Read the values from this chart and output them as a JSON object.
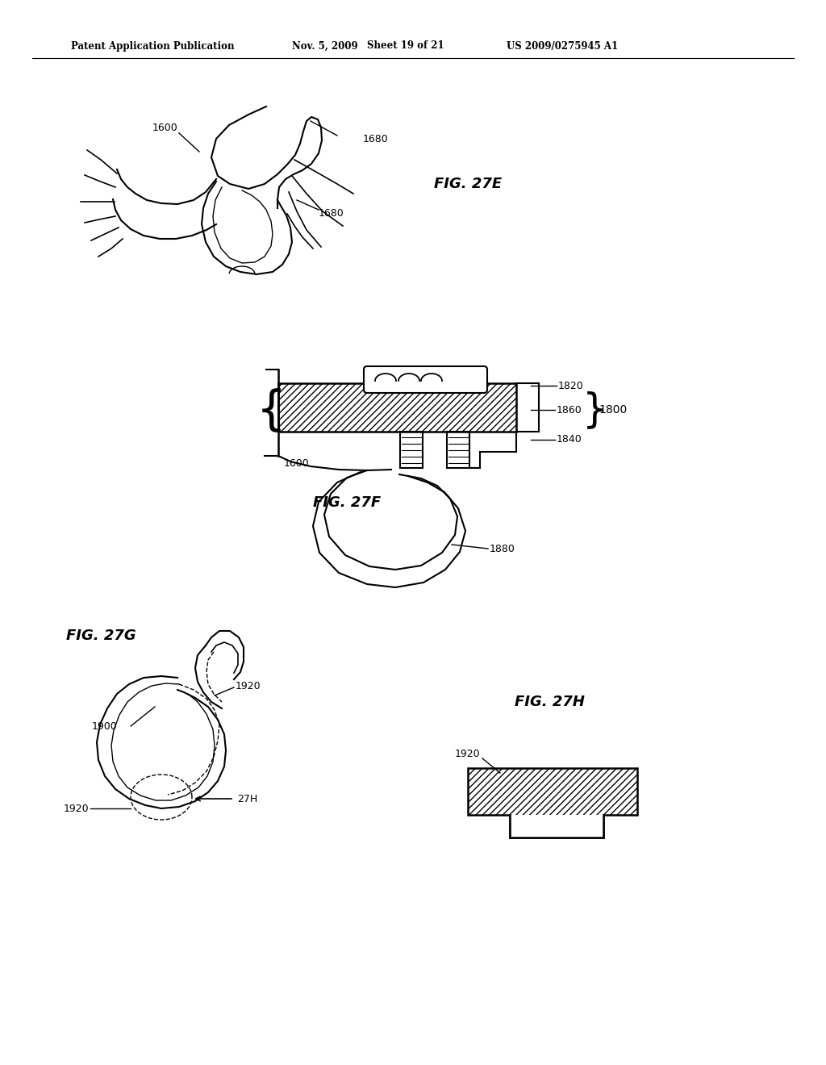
{
  "bg_color": "#ffffff",
  "line_color": "#000000",
  "text_color": "#000000",
  "header_left": "Patent Application Publication",
  "header_mid1": "Nov. 5, 2009",
  "header_mid2": "Sheet 19 of 21",
  "header_right": "US 2009/0275945 A1",
  "fig27e": "FIG. 27E",
  "fig27f": "FIG. 27F",
  "fig27g": "FIG. 27G",
  "fig27h": "FIG. 27H",
  "lbl_1600a": "1600",
  "lbl_1680a": "1680",
  "lbl_1680b": "1680",
  "lbl_1820": "1820",
  "lbl_1860": "1860",
  "lbl_1800": "1800",
  "lbl_1840": "1840",
  "lbl_1600b": "1600",
  "lbl_1880": "1880",
  "lbl_1900": "1900",
  "lbl_1920a": "1920",
  "lbl_1920b": "1920",
  "lbl_27h": "27H",
  "lbl_1920c": "1920"
}
